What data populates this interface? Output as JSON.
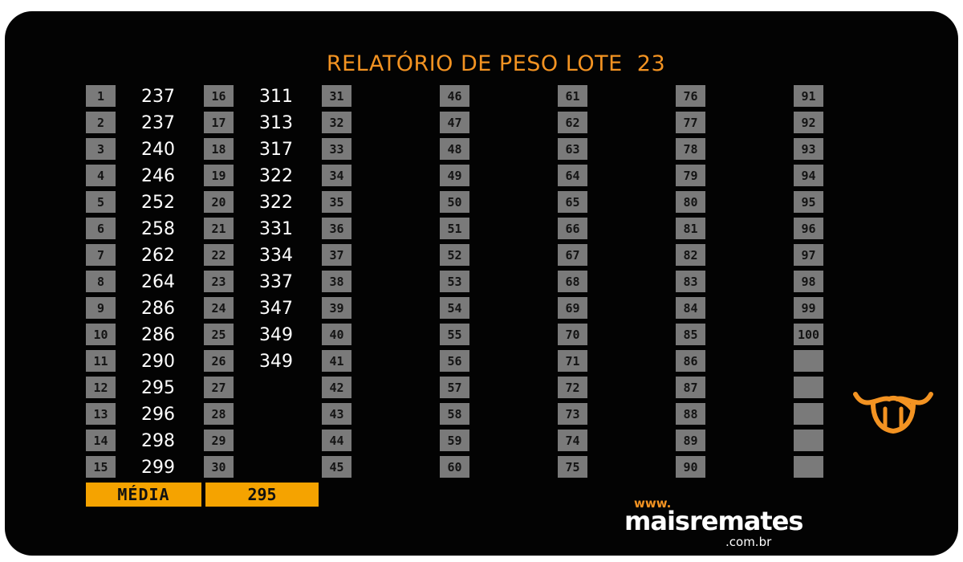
{
  "title": "RELATÓRIO DE PESO LOTE  23",
  "rows": [
    {
      "n": "1",
      "w": "237"
    },
    {
      "n": "2",
      "w": "237"
    },
    {
      "n": "3",
      "w": "240"
    },
    {
      "n": "4",
      "w": "246"
    },
    {
      "n": "5",
      "w": "252"
    },
    {
      "n": "6",
      "w": "258"
    },
    {
      "n": "7",
      "w": "262"
    },
    {
      "n": "8",
      "w": "264"
    },
    {
      "n": "9",
      "w": "286"
    },
    {
      "n": "10",
      "w": "286"
    },
    {
      "n": "11",
      "w": "290"
    },
    {
      "n": "12",
      "w": "295"
    },
    {
      "n": "13",
      "w": "296"
    },
    {
      "n": "14",
      "w": "298"
    },
    {
      "n": "15",
      "w": "299"
    },
    {
      "n": "16",
      "w": "311"
    },
    {
      "n": "17",
      "w": "313"
    },
    {
      "n": "18",
      "w": "317"
    },
    {
      "n": "19",
      "w": "322"
    },
    {
      "n": "20",
      "w": "322"
    },
    {
      "n": "21",
      "w": "331"
    },
    {
      "n": "22",
      "w": "334"
    },
    {
      "n": "23",
      "w": "337"
    },
    {
      "n": "24",
      "w": "347"
    },
    {
      "n": "25",
      "w": "349"
    },
    {
      "n": "26",
      "w": "349"
    },
    {
      "n": "27",
      "w": ""
    },
    {
      "n": "28",
      "w": ""
    },
    {
      "n": "29",
      "w": ""
    },
    {
      "n": "30",
      "w": ""
    },
    {
      "n": "31",
      "w": ""
    },
    {
      "n": "32",
      "w": ""
    },
    {
      "n": "33",
      "w": ""
    },
    {
      "n": "34",
      "w": ""
    },
    {
      "n": "35",
      "w": ""
    },
    {
      "n": "36",
      "w": ""
    },
    {
      "n": "37",
      "w": ""
    },
    {
      "n": "38",
      "w": ""
    },
    {
      "n": "39",
      "w": ""
    },
    {
      "n": "40",
      "w": ""
    },
    {
      "n": "41",
      "w": ""
    },
    {
      "n": "42",
      "w": ""
    },
    {
      "n": "43",
      "w": ""
    },
    {
      "n": "44",
      "w": ""
    },
    {
      "n": "45",
      "w": ""
    },
    {
      "n": "46",
      "w": ""
    },
    {
      "n": "47",
      "w": ""
    },
    {
      "n": "48",
      "w": ""
    },
    {
      "n": "49",
      "w": ""
    },
    {
      "n": "50",
      "w": ""
    },
    {
      "n": "51",
      "w": ""
    },
    {
      "n": "52",
      "w": ""
    },
    {
      "n": "53",
      "w": ""
    },
    {
      "n": "54",
      "w": ""
    },
    {
      "n": "55",
      "w": ""
    },
    {
      "n": "56",
      "w": ""
    },
    {
      "n": "57",
      "w": ""
    },
    {
      "n": "58",
      "w": ""
    },
    {
      "n": "59",
      "w": ""
    },
    {
      "n": "60",
      "w": ""
    },
    {
      "n": "61",
      "w": ""
    },
    {
      "n": "62",
      "w": ""
    },
    {
      "n": "63",
      "w": ""
    },
    {
      "n": "64",
      "w": ""
    },
    {
      "n": "65",
      "w": ""
    },
    {
      "n": "66",
      "w": ""
    },
    {
      "n": "67",
      "w": ""
    },
    {
      "n": "68",
      "w": ""
    },
    {
      "n": "69",
      "w": ""
    },
    {
      "n": "70",
      "w": ""
    },
    {
      "n": "71",
      "w": ""
    },
    {
      "n": "72",
      "w": ""
    },
    {
      "n": "73",
      "w": ""
    },
    {
      "n": "74",
      "w": ""
    },
    {
      "n": "75",
      "w": ""
    },
    {
      "n": "76",
      "w": ""
    },
    {
      "n": "77",
      "w": ""
    },
    {
      "n": "78",
      "w": ""
    },
    {
      "n": "79",
      "w": ""
    },
    {
      "n": "80",
      "w": ""
    },
    {
      "n": "81",
      "w": ""
    },
    {
      "n": "82",
      "w": ""
    },
    {
      "n": "83",
      "w": ""
    },
    {
      "n": "84",
      "w": ""
    },
    {
      "n": "85",
      "w": ""
    },
    {
      "n": "86",
      "w": ""
    },
    {
      "n": "87",
      "w": ""
    },
    {
      "n": "88",
      "w": ""
    },
    {
      "n": "89",
      "w": ""
    },
    {
      "n": "90",
      "w": ""
    },
    {
      "n": "91",
      "w": ""
    },
    {
      "n": "92",
      "w": ""
    },
    {
      "n": "93",
      "w": ""
    },
    {
      "n": "94",
      "w": ""
    },
    {
      "n": "95",
      "w": ""
    },
    {
      "n": "96",
      "w": ""
    },
    {
      "n": "97",
      "w": ""
    },
    {
      "n": "98",
      "w": ""
    },
    {
      "n": "99",
      "w": ""
    },
    {
      "n": "100",
      "w": ""
    },
    {
      "n": "",
      "w": ""
    },
    {
      "n": "",
      "w": ""
    },
    {
      "n": "",
      "w": ""
    },
    {
      "n": "",
      "w": ""
    },
    {
      "n": "",
      "w": ""
    }
  ],
  "summary": {
    "label": "MÉDIA",
    "value": "295"
  },
  "brand": {
    "www": "www.",
    "name": "maisremates",
    "tld": ".com.br",
    "logo_icon": "bull-head-icon"
  },
  "colors": {
    "background": "#030303",
    "accent": "#f39322",
    "number_box": "#7a7a7a",
    "summary_bar": "#f5a300"
  }
}
